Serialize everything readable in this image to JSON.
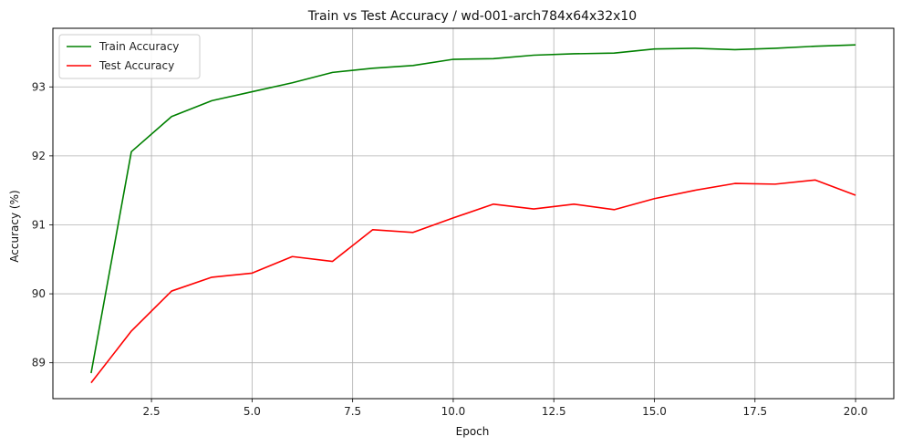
{
  "chart_data": {
    "type": "line",
    "title": "Train vs Test Accuracy / wd-001-arch784x64x32x10",
    "xlabel": "Epoch",
    "ylabel": "Accuracy (%)",
    "xlim": [
      0.05,
      20.95
    ],
    "ylim": [
      88.48,
      93.85
    ],
    "xticks": [
      2.5,
      5.0,
      7.5,
      10.0,
      12.5,
      15.0,
      17.5,
      20.0
    ],
    "xtick_labels": [
      "2.5",
      "5.0",
      "7.5",
      "10.0",
      "12.5",
      "15.0",
      "17.5",
      "20.0"
    ],
    "yticks": [
      89,
      90,
      91,
      92,
      93
    ],
    "ytick_labels": [
      "89",
      "90",
      "91",
      "92",
      "93"
    ],
    "grid": true,
    "legend_position": "top-left",
    "x": [
      1,
      2,
      3,
      4,
      5,
      6,
      7,
      8,
      9,
      10,
      11,
      12,
      13,
      14,
      15,
      16,
      17,
      18,
      19,
      20
    ],
    "series": [
      {
        "name": "Train Accuracy",
        "color": "#008000",
        "values": [
          88.85,
          92.06,
          92.57,
          92.8,
          92.93,
          93.06,
          93.21,
          93.27,
          93.31,
          93.4,
          93.41,
          93.46,
          93.48,
          93.49,
          93.55,
          93.56,
          93.54,
          93.56,
          93.59,
          93.61
        ]
      },
      {
        "name": "Test Accuracy",
        "color": "#ff0000",
        "values": [
          88.71,
          89.46,
          90.04,
          90.24,
          90.3,
          90.54,
          90.47,
          90.93,
          90.89,
          91.1,
          91.3,
          91.23,
          91.3,
          91.22,
          91.38,
          91.5,
          91.6,
          91.59,
          91.65,
          91.43
        ]
      }
    ]
  }
}
